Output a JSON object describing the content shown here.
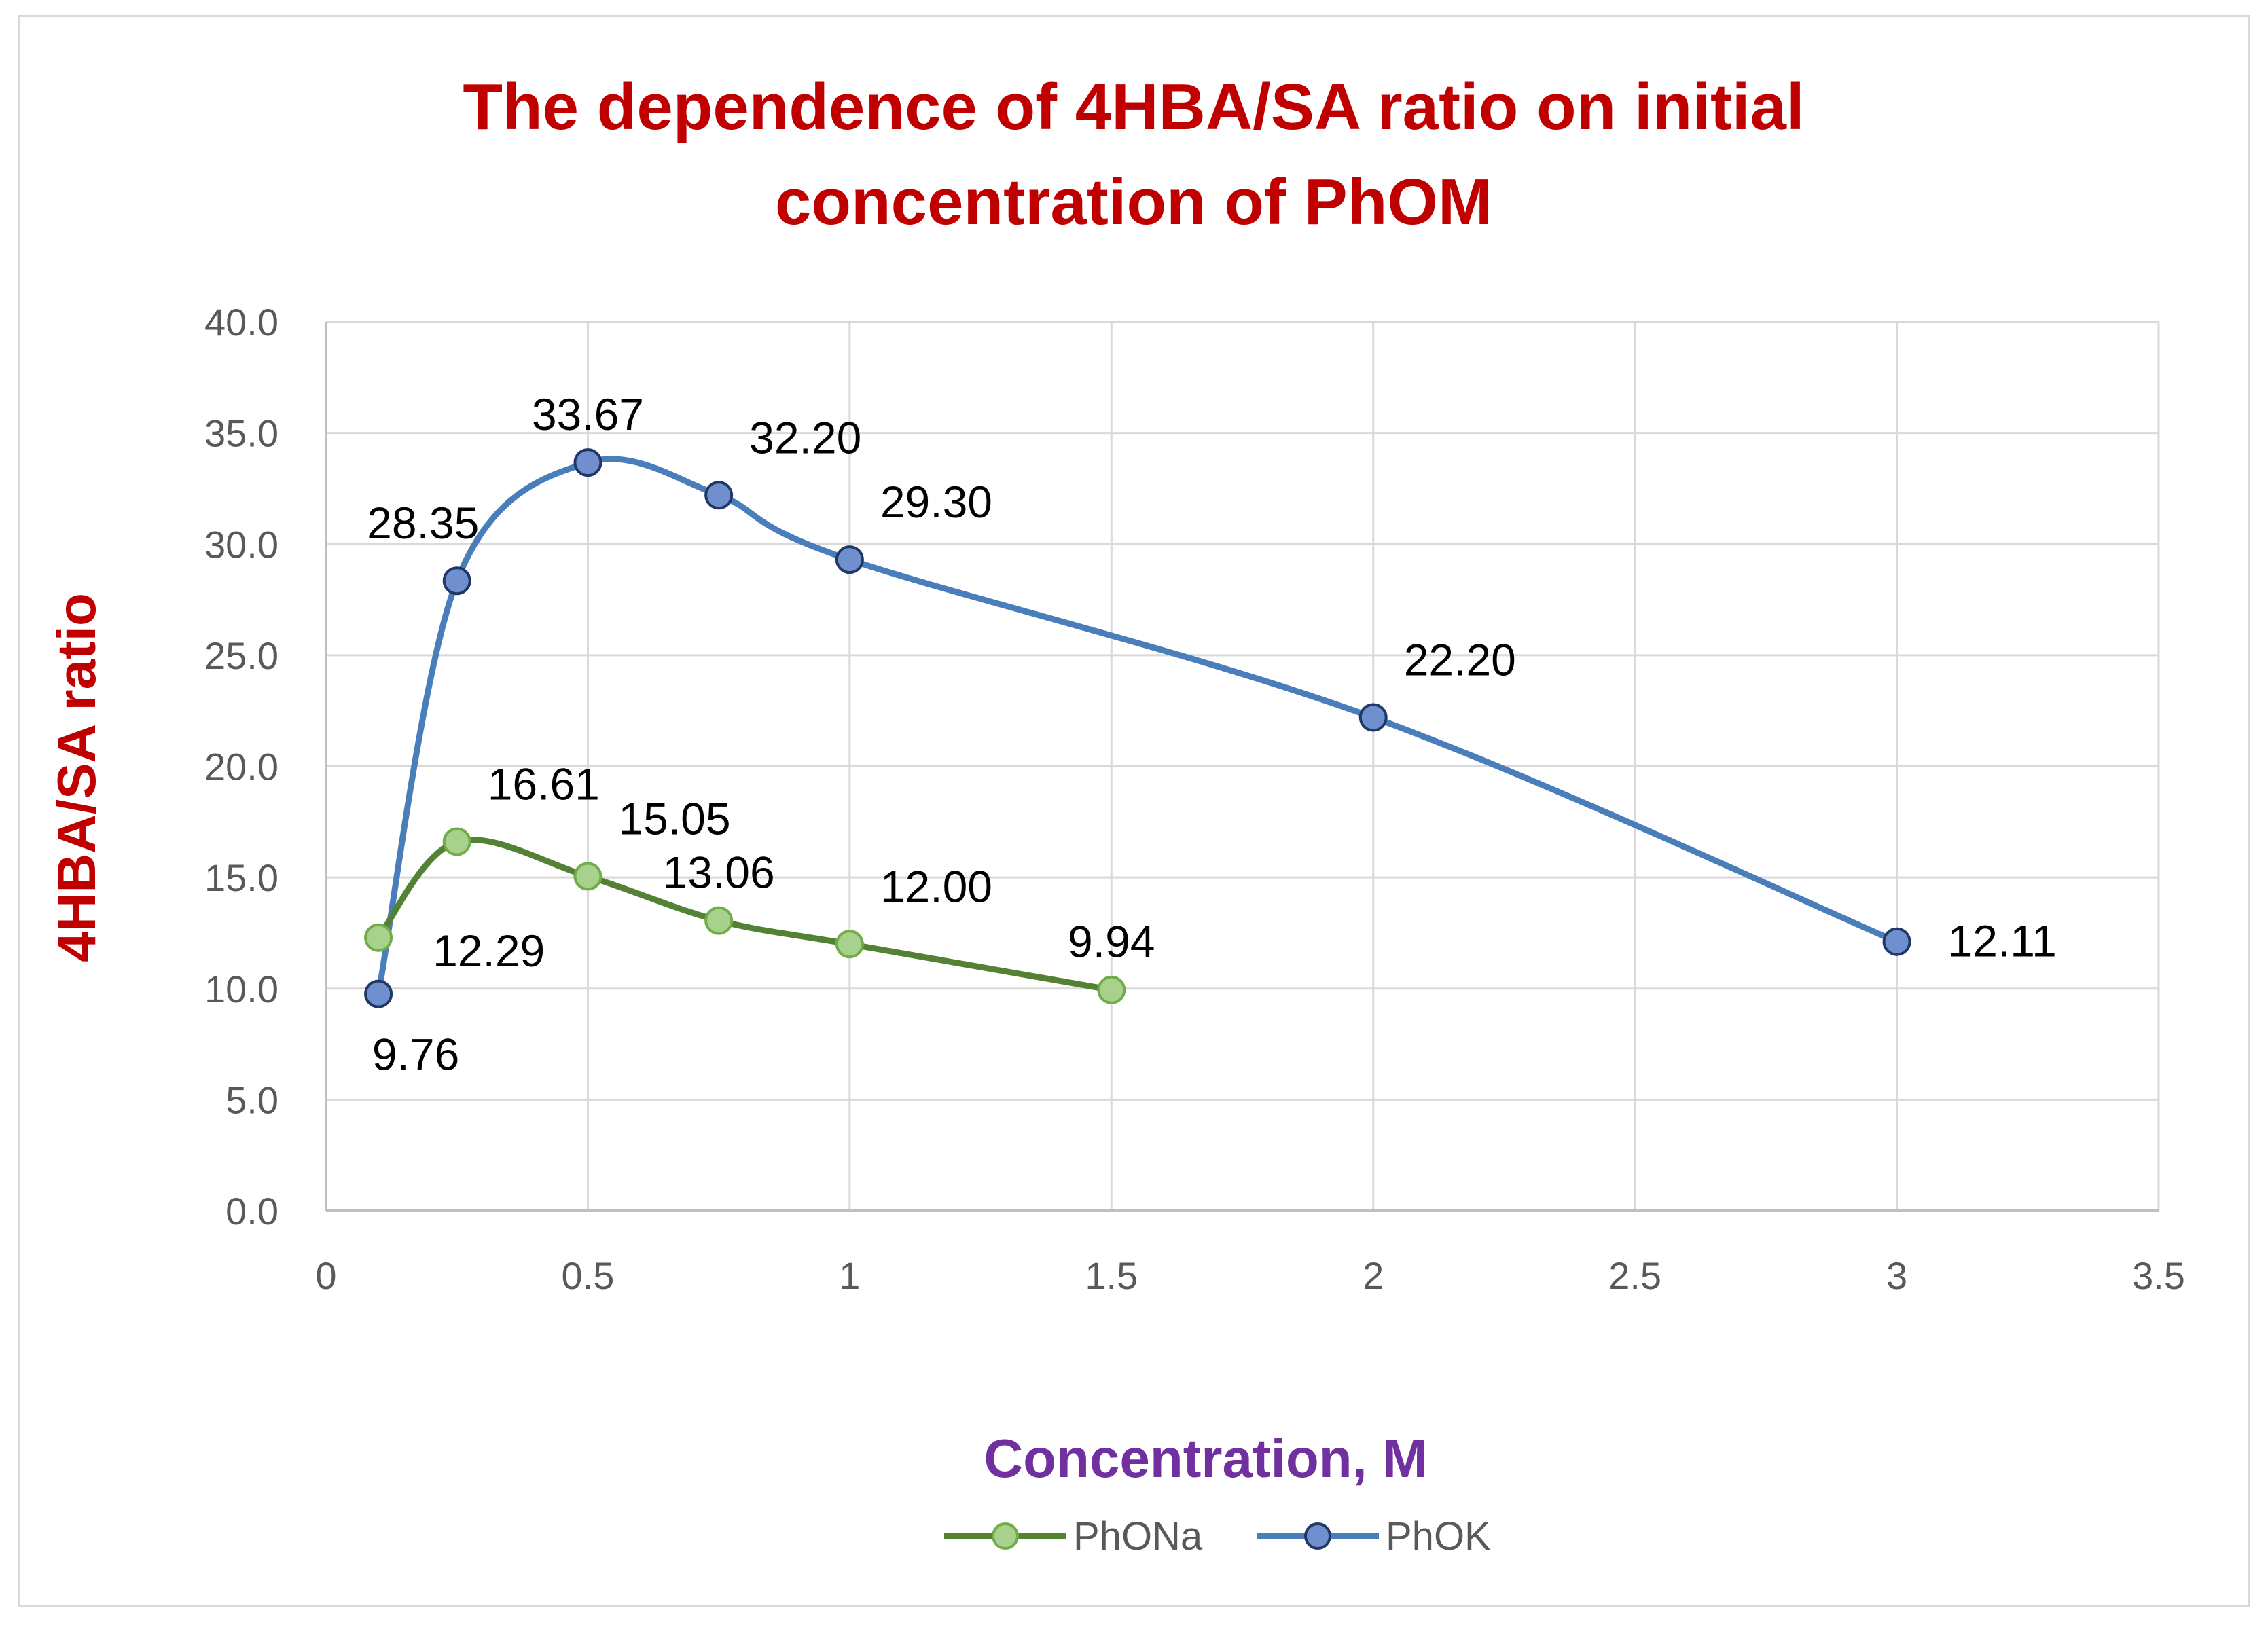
{
  "chart_data": {
    "type": "line",
    "title_lines": [
      "The dependence of 4HBA/SA ratio on initial",
      "concentration of PhOM"
    ],
    "xlabel": "Concentration, M",
    "ylabel": "4HBA/SA ratio",
    "xlim": [
      0,
      3.5
    ],
    "ylim": [
      0,
      40
    ],
    "x_ticks": [
      0,
      0.5,
      1,
      1.5,
      2,
      2.5,
      3,
      3.5
    ],
    "x_tick_labels": [
      "0",
      "0.5",
      "1",
      "1.5",
      "2",
      "2.5",
      "3",
      "3.5"
    ],
    "y_ticks": [
      0,
      5,
      10,
      15,
      20,
      25,
      30,
      35,
      40
    ],
    "y_tick_labels": [
      "0.0",
      "5.0",
      "10.0",
      "15.0",
      "20.0",
      "25.0",
      "30.0",
      "35.0",
      "40.0"
    ],
    "grid": true,
    "legend_position": "bottom",
    "series": [
      {
        "name": "PhONa",
        "line_color": "#548235",
        "marker_fill": "#a9d18e",
        "marker_stroke": "#70ad47",
        "x": [
          0.1,
          0.25,
          0.5,
          0.75,
          1,
          1.5
        ],
        "y": [
          12.29,
          16.61,
          15.05,
          13.06,
          12.0,
          9.94
        ],
        "labels": [
          "12.29",
          "16.61",
          "15.05",
          "13.06",
          "12.00",
          "9.94"
        ],
        "label_positions": [
          "below-right",
          "above-right",
          "above-right",
          "above",
          "above-right",
          "above"
        ]
      },
      {
        "name": "PhOK",
        "line_color": "#4a7ebb",
        "marker_fill": "#6f8fcf",
        "marker_stroke": "#1f3864",
        "x": [
          0.1,
          0.25,
          0.5,
          0.75,
          1,
          2,
          3
        ],
        "y": [
          9.76,
          28.35,
          33.67,
          32.2,
          29.3,
          22.2,
          12.11
        ],
        "labels": [
          "9.76",
          "28.35",
          "33.67",
          "32.20",
          "29.30",
          "22.20",
          "12.11"
        ],
        "label_positions": [
          "below",
          "above-left",
          "above",
          "above-right",
          "above-right",
          "above-right",
          "right"
        ]
      }
    ]
  }
}
